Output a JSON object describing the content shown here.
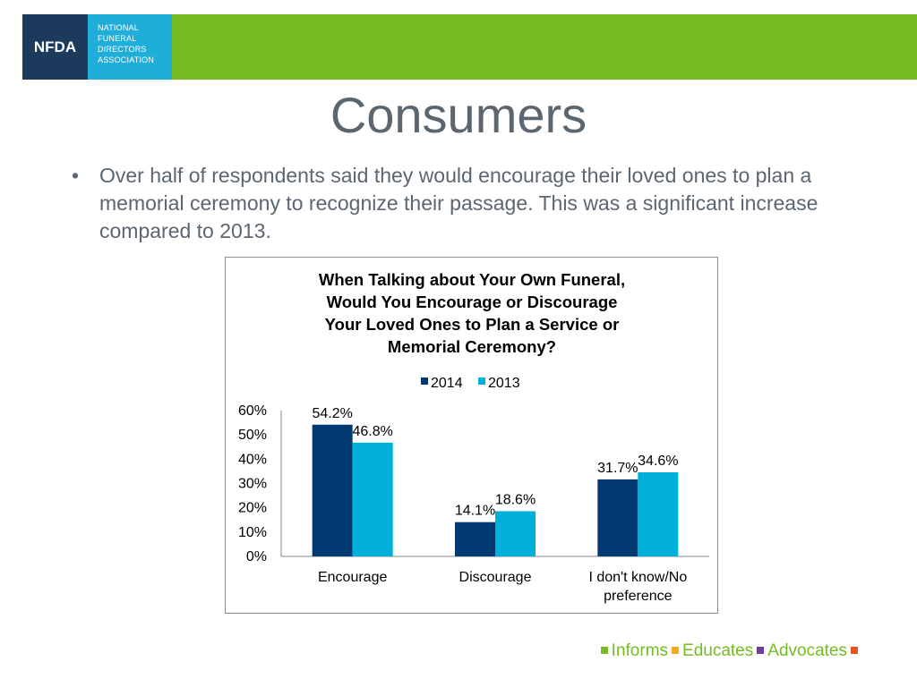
{
  "logo": {
    "abbr": "NFDA",
    "lines": [
      "NATIONAL",
      "FUNERAL",
      "DIRECTORS",
      "ASSOCIATION"
    ]
  },
  "slide": {
    "title": "Consumers",
    "bullet_mark": "•",
    "bullet": "Over half of respondents said they would encourage their loved ones to plan a memorial ceremony to recognize their passage. This was a significant increase compared to 2013."
  },
  "chart_data": {
    "type": "bar",
    "title_lines": [
      "When Talking about Your Own Funeral,",
      "Would You Encourage or Discourage",
      "Your Loved Ones to Plan a Service or",
      "Memorial Ceremony?"
    ],
    "categories": [
      [
        "Encourage"
      ],
      [
        "Discourage"
      ],
      [
        "I don't know/No",
        "preference"
      ]
    ],
    "series": [
      {
        "name": "2014",
        "values": [
          54.2,
          14.1,
          31.7
        ],
        "labels": [
          "54.2%",
          "14.1%",
          "31.7%"
        ],
        "color": "#003a70"
      },
      {
        "name": "2013",
        "values": [
          46.8,
          18.6,
          34.6
        ],
        "labels": [
          "46.8%",
          "18.6%",
          "34.6%"
        ],
        "color": "#00b0da"
      }
    ],
    "yticks": [
      "0%",
      "10%",
      "20%",
      "30%",
      "40%",
      "50%",
      "60%"
    ],
    "ylim": [
      0,
      60
    ],
    "legend": "top",
    "grid": false
  },
  "footer": [
    {
      "text": "Informs",
      "color": "#74bc22"
    },
    {
      "text": "Educates",
      "color": "#f5a623"
    },
    {
      "text": "Advocates",
      "color": "#6a3d9a"
    },
    {
      "text": "",
      "color": "#e8551c"
    }
  ]
}
